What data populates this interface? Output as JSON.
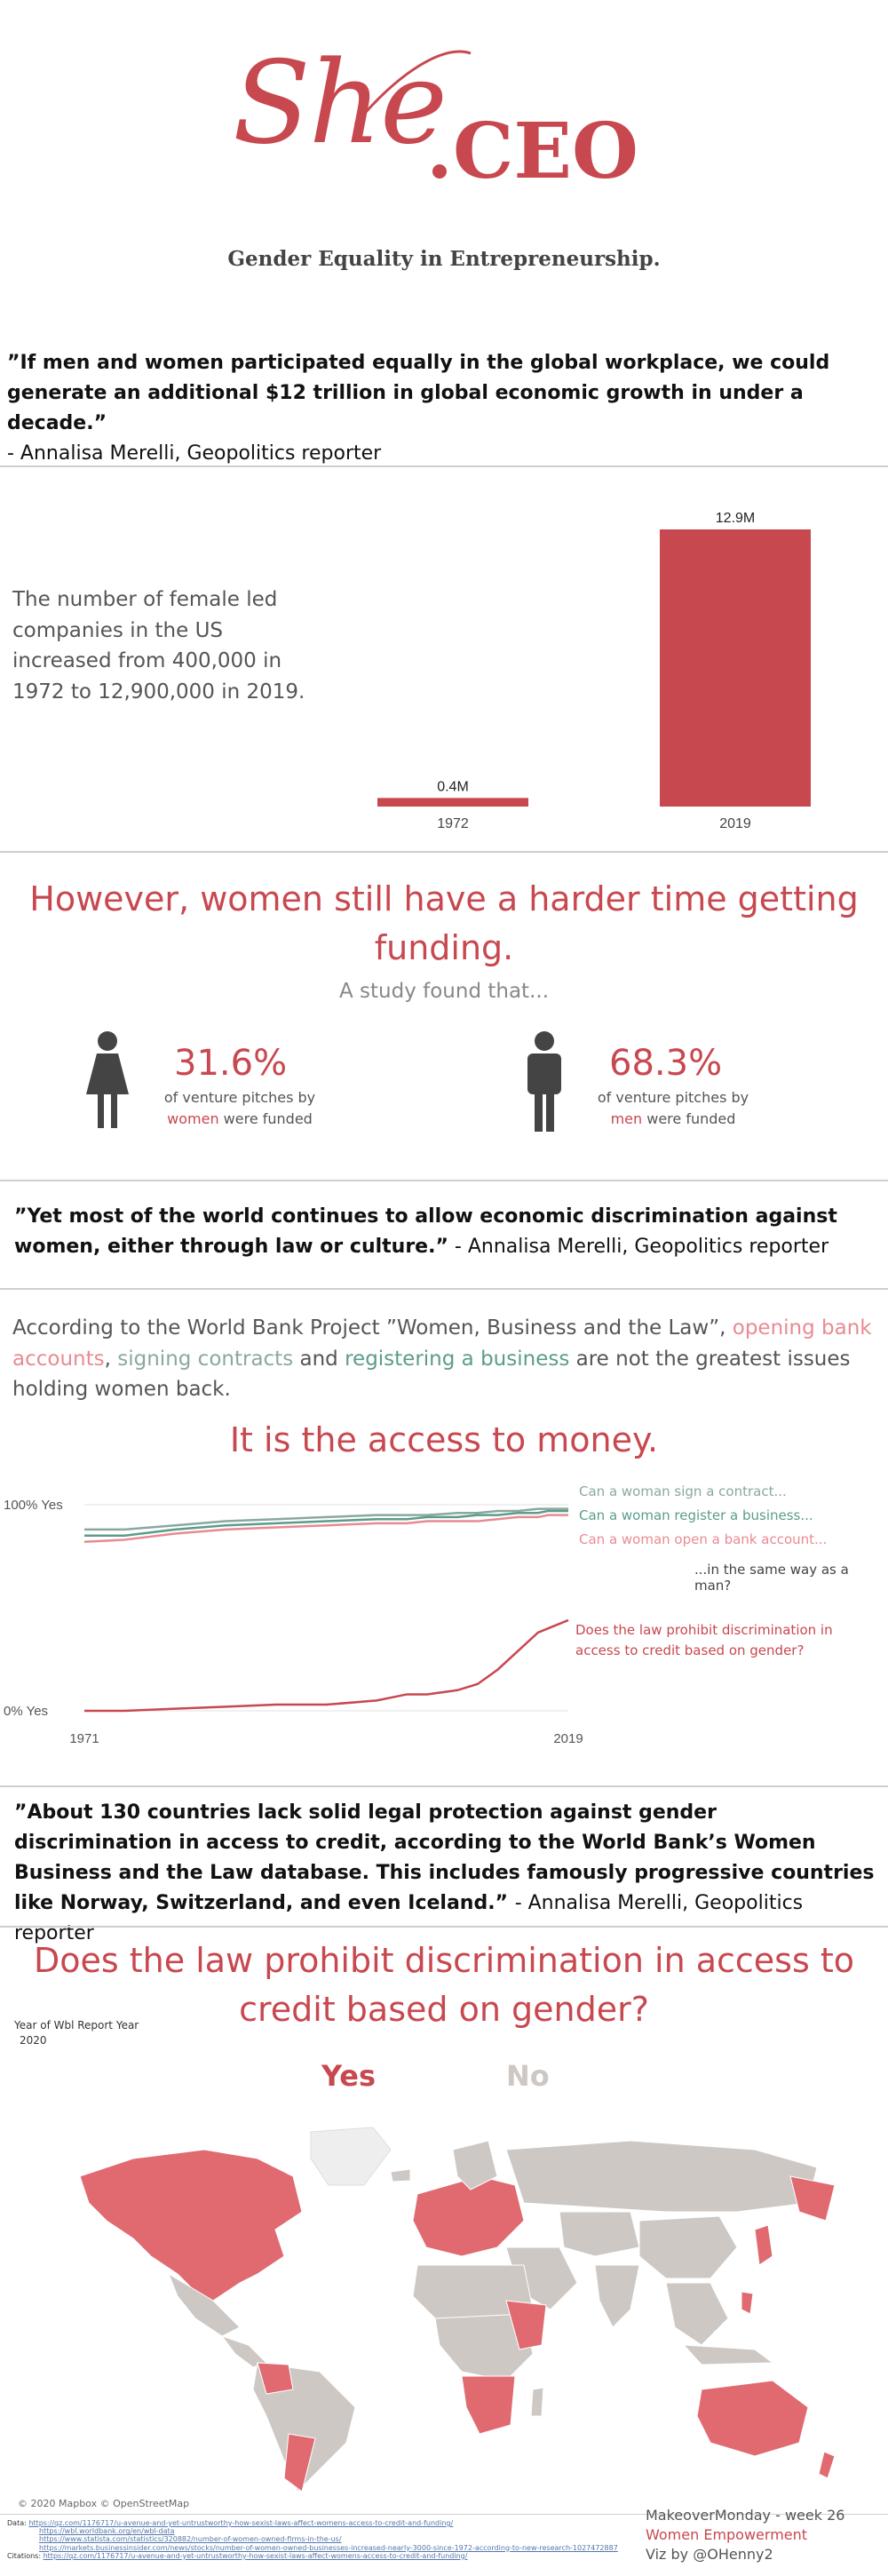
{
  "header": {
    "logo_she": "She",
    "logo_ceo": ".CEO",
    "subtitle": "Gender Equality in Entrepreneurship."
  },
  "quote1": {
    "text": "”If men and women participated equally in the global workplace, we could generate an additional $12 trillion  in global economic growth in under a decade.”",
    "author": "- Annalisa Merelli, Geopolitics reporter"
  },
  "companies": {
    "description": "The number of female led companies in the US increased from 400,000 in 1972 to 12,900,000 in 2019."
  },
  "funding": {
    "headline": "However, women still have a harder time getting funding.",
    "intro": "A study found that...",
    "women": {
      "pct": "31.6%",
      "line1": "of venture pitches by",
      "highlight": "women",
      "line2": " were funded",
      "icon": "female-icon"
    },
    "men": {
      "pct": "68.3%",
      "line1": "of venture pitches by",
      "highlight": "men",
      "line2": " were funded",
      "icon": "male-icon"
    }
  },
  "quote2": {
    "text": "”Yet most of the world continues to allow economic discrimination against women, either through law or culture.”",
    "author": " - Annalisa Merelli, Geopolitics reporter"
  },
  "worldbank": {
    "p1": "According to the World Bank Project ”Women, Business and the Law”, ",
    "hl1": "opening bank accounts",
    "p2": ", ",
    "hl2": "signing contracts",
    "p3": " and ",
    "hl3": "registering a business",
    "p4": " are not the greatest issues holding women back.",
    "headline": "It is the access to money.",
    "legend_contract": "Can a woman sign a contract...",
    "legend_register": "Can a woman register a business...",
    "legend_bank": "Can a woman open a bank account...",
    "legend_same": "...in the same way as a man?",
    "legend_credit": "Does the law prohibit discrimination in access to credit based on gender?"
  },
  "quote3": {
    "text": "”About 130 countries lack solid legal protection against gender discrimination in access to credit, according to the World Bank’s Women Business and the Law database. This includes famously progressive countries like Norway, Switzerland, and even Iceland.” ",
    "author": " - Annalisa Merelli, Geopolitics reporter"
  },
  "mapsec": {
    "headline": "Does the law prohibit discrimination in access to credit based on gender?",
    "filter_label": "Year of Wbl Report Year",
    "filter_value": "2020",
    "yes": "Yes",
    "no": "No",
    "attribution": "© 2020 Mapbox © OpenStreetMap",
    "yes_color": "#e06a70",
    "no_color": "#cdc8c4"
  },
  "footer": {
    "data_label": "Data:",
    "links": [
      "https://qz.com/1176717/u-avenue-and-yet-untrustworthy-how-sexist-laws-affect-womens-access-to-credit-and-funding/",
      "https://wbl.worldbank.org/en/wbl-data",
      "https://www.statista.com/statistics/320882/number-of-women-owned-firms-in-the-us/",
      "https://markets.businessinsider.com/news/stocks/number-of-women-owned-businesses-increased-nearly-3000-since-1972-according-to-new-research-1027472887"
    ],
    "citations_label": "Citations:",
    "citation": "https://qz.com/1176717/u-avenue-and-yet-untrustworthy-how-sexist-laws-affect-womens-access-to-credit-and-funding/",
    "makeover": "MakeoverMonday - week 26",
    "theme": "Women Empowerment",
    "viz": "Viz by @OHenny2"
  },
  "chart_data": [
    {
      "type": "bar",
      "categories": [
        "1972",
        "2019"
      ],
      "values": [
        400000,
        12900000
      ],
      "data_labels": [
        "0.4M",
        "12.9M"
      ],
      "title": "",
      "xlabel": "",
      "ylabel": "",
      "ylim": [
        0,
        12900000
      ],
      "color": "#c8484f"
    },
    {
      "type": "line",
      "x": [
        1971,
        1975,
        1980,
        1985,
        1990,
        1995,
        2000,
        2003,
        2005,
        2008,
        2010,
        2012,
        2014,
        2016,
        2017,
        2018,
        2019
      ],
      "xlim": [
        1971,
        2019
      ],
      "ylim": [
        0,
        100
      ],
      "y_tick_labels": [
        "0% Yes",
        "100% Yes"
      ],
      "x_tick_labels": [
        "1971",
        "2019"
      ],
      "grid": true,
      "series": [
        {
          "name": "Can a woman sign a contract...",
          "color": "#8aa8a0",
          "values": [
            88,
            88,
            90,
            92,
            93,
            94,
            95,
            95,
            95,
            96,
            96,
            97,
            97,
            98,
            98,
            98,
            98
          ]
        },
        {
          "name": "Can a woman register a business...",
          "color": "#5b9c8c",
          "values": [
            85,
            85,
            88,
            90,
            91,
            92,
            93,
            93,
            94,
            94,
            95,
            95,
            96,
            96,
            97,
            97,
            97
          ]
        },
        {
          "name": "Can a woman open a bank account...",
          "color": "#e98a92",
          "values": [
            82,
            83,
            86,
            88,
            89,
            90,
            91,
            91,
            92,
            92,
            92,
            93,
            94,
            94,
            95,
            95,
            95
          ]
        },
        {
          "name": "Does the law prohibit discrimination in access to credit based on gender?",
          "color": "#c8484f",
          "values": [
            0,
            0,
            1,
            2,
            3,
            3,
            5,
            8,
            8,
            10,
            13,
            20,
            29,
            38,
            40,
            42,
            44
          ]
        }
      ]
    }
  ]
}
